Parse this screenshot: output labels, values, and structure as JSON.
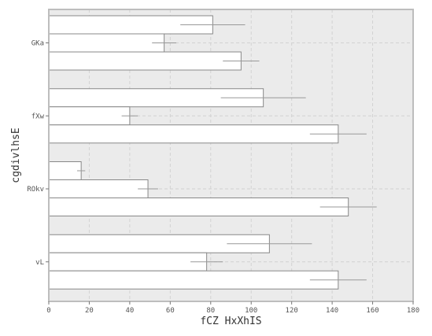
{
  "chart_data": {
    "type": "bar",
    "orientation": "horizontal",
    "title": "",
    "xlabel": "fCZ HxXhIS",
    "ylabel": "cgdivlhsE",
    "categories": [
      "GKa",
      "fXw",
      "ROkv",
      "vL"
    ],
    "xlim": [
      0,
      180
    ],
    "x_ticks": [
      0,
      20,
      40,
      60,
      80,
      100,
      120,
      140,
      160,
      180
    ],
    "grid": true,
    "legend": "none",
    "series": [
      {
        "values": [
          81,
          106,
          16,
          109
        ],
        "errors": [
          16,
          21,
          2,
          21
        ]
      },
      {
        "values": [
          57,
          40,
          49,
          78
        ],
        "errors": [
          6,
          4,
          5,
          8
        ]
      },
      {
        "values": [
          95,
          143,
          148,
          143
        ],
        "errors": [
          9,
          14,
          14,
          14
        ]
      }
    ],
    "colors": {
      "bar_fill": "#ffffff",
      "bar_edge": "#888888",
      "error_bar": "#999999",
      "plot_background": "#ebebeb",
      "grid": "#d2d2d2",
      "frame": "#bdbdbd"
    }
  }
}
